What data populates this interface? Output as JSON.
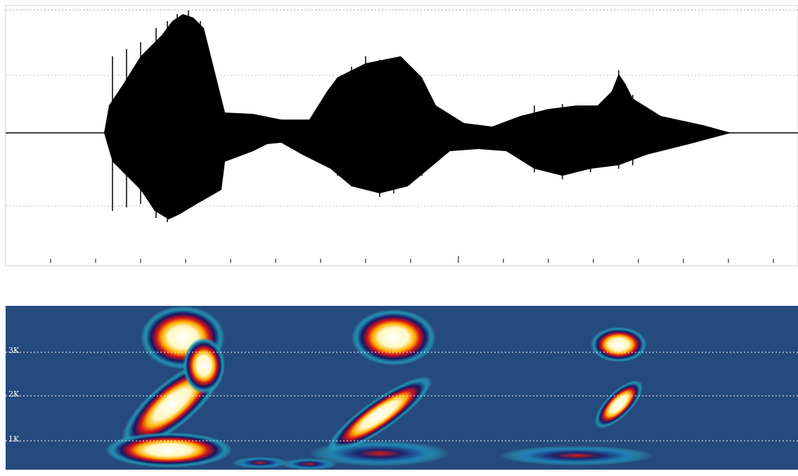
{
  "spectrogram": {
    "frequency_labels": [
      "3K",
      "2K",
      "1K"
    ]
  }
}
